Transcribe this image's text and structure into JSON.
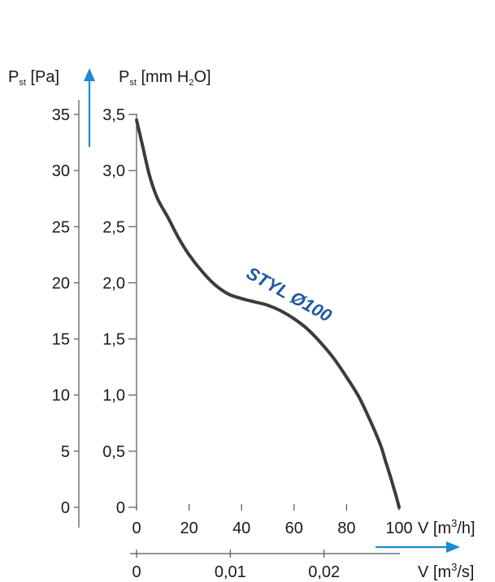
{
  "colors": {
    "curve": "#3c3c3c",
    "arrow": "#1a8ad4",
    "curve_label": "#1f5aa0",
    "axis": "#555555",
    "text": "#1a1a1a"
  },
  "axis_titles": {
    "pa": {
      "main": "P",
      "sub": "st",
      "rest": " [Pa]"
    },
    "mmh2o": {
      "main": "P",
      "sub": "st",
      "rest_a": " [mm H",
      "sub2": "2",
      "rest_b": "O]"
    },
    "flow_h": {
      "pre": "V [m",
      "sup": "3",
      "post": "/h]"
    },
    "flow_s": {
      "pre": "V [m",
      "sup": "3",
      "post": "/s]"
    }
  },
  "chart_data": {
    "type": "line",
    "title": "",
    "series": [
      {
        "name": "STYL Ø100",
        "x": [
          0,
          2,
          5,
          8,
          12,
          16,
          20,
          25,
          30,
          35,
          40,
          45,
          50,
          55,
          60,
          65,
          70,
          75,
          80,
          85,
          90,
          93,
          95,
          97,
          98,
          99,
          100
        ],
        "y": [
          34.5,
          32.5,
          29.5,
          27.5,
          25.8,
          24.0,
          22.5,
          21.0,
          19.8,
          19.0,
          18.6,
          18.3,
          18.0,
          17.5,
          16.8,
          15.9,
          14.7,
          13.3,
          11.6,
          9.7,
          7.2,
          5.5,
          4.0,
          2.5,
          1.7,
          0.9,
          0
        ]
      }
    ],
    "xlim": [
      0,
      100
    ],
    "ylim": [
      0,
      35
    ],
    "left_axis": {
      "label": "Pst [Pa]",
      "ticks": [
        0,
        5,
        10,
        15,
        20,
        25,
        30,
        35
      ],
      "tick_labels": [
        "0",
        "5",
        "10",
        "15",
        "20",
        "25",
        "30",
        "35"
      ]
    },
    "right_axis": {
      "label": "Pst [mm H2O]",
      "ticks": [
        0,
        0.5,
        1.0,
        1.5,
        2.0,
        2.5,
        3.0,
        3.5
      ],
      "tick_labels": [
        "0",
        "0,5",
        "1,0",
        "1,5",
        "2,0",
        "2,5",
        "3,0",
        "3,5"
      ]
    },
    "x_axis_primary": {
      "label": "V [m3/h]",
      "ticks": [
        0,
        20,
        40,
        60,
        80,
        100
      ],
      "tick_labels": [
        "0",
        "20",
        "40",
        "60",
        "80",
        "100"
      ]
    },
    "x_axis_secondary": {
      "label": "V [m3/s]",
      "ticks": [
        0,
        0.01,
        0.02
      ],
      "tick_labels": [
        "0",
        "0,01",
        "0,02"
      ]
    },
    "grid": false,
    "annotations": [
      {
        "text": "STYL Ø100",
        "x": 57,
        "y": 18.5
      }
    ]
  }
}
